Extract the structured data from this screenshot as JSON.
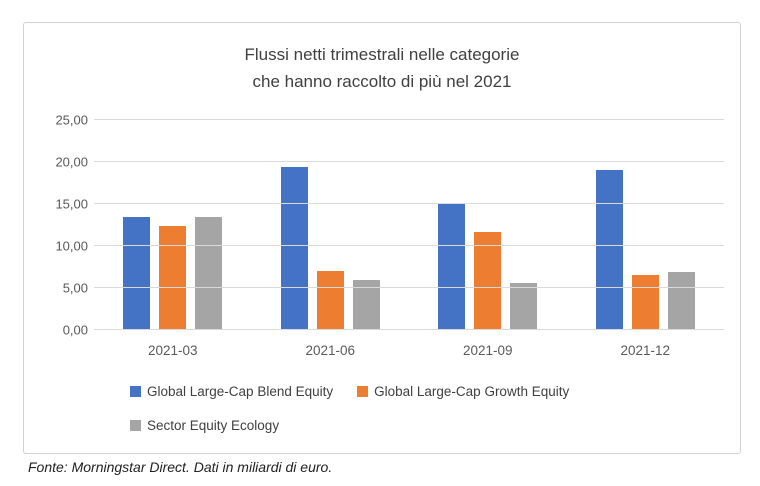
{
  "figure": {
    "title_line1": "Flussi netti trimestrali nelle categorie",
    "title_line2": "che hanno raccolto di più nel 2021",
    "footer": "Fonte: Morningstar Direct. Dati in miliardi di euro."
  },
  "chart_data": {
    "type": "bar",
    "title": "Flussi netti trimestrali nelle categorie che hanno raccolto di più nel 2021",
    "categories": [
      "2021-03",
      "2021-06",
      "2021-09",
      "2021-12"
    ],
    "series": [
      {
        "name": "Global Large-Cap Blend Equity",
        "color": "#4472C4",
        "values": [
          13.5,
          19.4,
          15.1,
          19.1
        ]
      },
      {
        "name": "Global Large-Cap Growth Equity",
        "color": "#ED7D31",
        "values": [
          12.4,
          7.0,
          11.7,
          6.5
        ]
      },
      {
        "name": "Sector Equity Ecology",
        "color": "#A5A5A5",
        "values": [
          13.4,
          6.0,
          5.6,
          6.9
        ]
      }
    ],
    "ylim": [
      0,
      25
    ],
    "ytick_step": 5,
    "ytick_labels": [
      "0,00",
      "5,00",
      "10,00",
      "15,00",
      "20,00",
      "25,00"
    ],
    "grid": true,
    "legend_position": "bottom-left",
    "xlabel": "",
    "ylabel": "",
    "unit_note": "Dati in miliardi di euro",
    "source_note": "Fonte: Morningstar Direct."
  },
  "colors": {
    "series_blue": "#4472C4",
    "series_orange": "#ED7D31",
    "series_gray": "#A5A5A5",
    "gridline": "#D9D9D9",
    "figure_border": "#D2D2D2",
    "title_text": "#404040",
    "axis_text": "#595959",
    "legend_text": "#404040",
    "footer_text": "#1F1F1F"
  }
}
